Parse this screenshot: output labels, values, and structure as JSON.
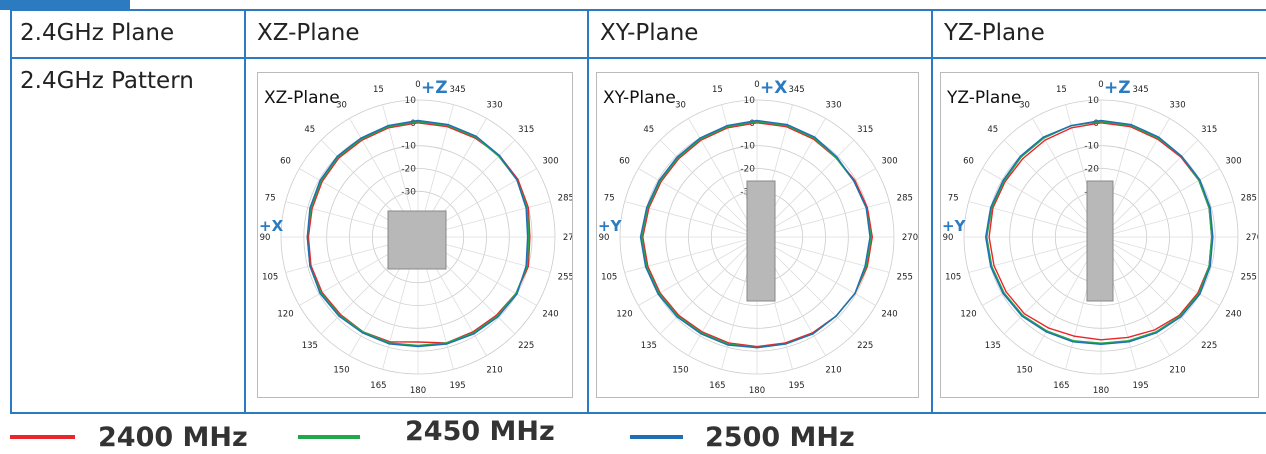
{
  "table": {
    "header": [
      "2.4GHz Plane",
      "XZ-Plane",
      "XY-Plane",
      "YZ-Plane"
    ],
    "row_label": "2.4GHz Pattern"
  },
  "chart_data": [
    {
      "type": "polar",
      "title": "XZ-Plane",
      "top_label": "+Z",
      "left_label": "+X",
      "theta": [
        0,
        15,
        30,
        45,
        60,
        75,
        90,
        105,
        120,
        135,
        150,
        165,
        180,
        195,
        210,
        225,
        240,
        255,
        270,
        285,
        300,
        315,
        330,
        345
      ],
      "rlim": [
        -50,
        10
      ],
      "rticks": [
        10,
        0,
        -10,
        -20,
        -30
      ],
      "series": [
        {
          "name": "2400 MHz",
          "color": "#e8262b",
          "values": [
            0,
            -0.5,
            -1,
            -1,
            -1.5,
            -2,
            -2,
            -1.5,
            -1.5,
            -2,
            -2,
            -2.5,
            -4,
            -2,
            -2,
            -1.5,
            -0.5,
            0,
            -1,
            0,
            0.5,
            0.5,
            0,
            0
          ]
        },
        {
          "name": "2450 MHz",
          "color": "#22a84a",
          "values": [
            0.5,
            0,
            -0.5,
            -0.5,
            -1,
            -1.5,
            -1.5,
            -1,
            -1,
            -1.5,
            -2,
            -2,
            -2.5,
            -2,
            -1.5,
            -1,
            -0.5,
            -0.5,
            -1.5,
            -0.5,
            0,
            0,
            0.5,
            0.5
          ]
        },
        {
          "name": "2500 MHz",
          "color": "#1f6fb5",
          "values": [
            1,
            0.5,
            0,
            0,
            -0.5,
            -1,
            -1.5,
            -1,
            -0.5,
            -1,
            -1.5,
            -1.5,
            -2,
            -1.5,
            -1,
            -0.5,
            0,
            -1,
            -2,
            -1,
            0,
            0.5,
            1,
            1
          ]
        }
      ]
    },
    {
      "type": "polar",
      "title": "XY-Plane",
      "top_label": "+X",
      "left_label": "+Y",
      "theta": [
        0,
        15,
        30,
        45,
        60,
        75,
        90,
        105,
        120,
        135,
        150,
        165,
        180,
        195,
        210,
        225,
        240,
        255,
        270,
        285,
        300,
        315,
        330,
        345
      ],
      "rlim": [
        -50,
        10
      ],
      "rticks": [
        10,
        0,
        -10,
        -20,
        -30
      ],
      "series": [
        {
          "name": "2400 MHz",
          "color": "#e8262b",
          "values": [
            0,
            -0.5,
            -1,
            -1.5,
            -1.5,
            -1,
            0,
            -0.5,
            -1,
            -1.5,
            -2,
            -2,
            -2,
            -2,
            -1.5,
            -1,
            -0.5,
            0,
            0.5,
            0,
            -0.5,
            -1,
            -0.5,
            0
          ]
        },
        {
          "name": "2450 MHz",
          "color": "#22a84a",
          "values": [
            0.5,
            0,
            -0.5,
            -1,
            -1,
            -0.5,
            0.5,
            0,
            -0.5,
            -1,
            -1.5,
            -1.5,
            -1.5,
            -1.5,
            -1,
            -1,
            -0.5,
            -0.5,
            0,
            -0.5,
            -1,
            -1,
            0,
            0.5
          ]
        },
        {
          "name": "2500 MHz",
          "color": "#1f6fb5",
          "values": [
            1,
            0.5,
            0,
            -0.5,
            -0.5,
            0,
            1,
            0.5,
            0,
            -0.5,
            -1,
            -1,
            -1.5,
            -1.5,
            -1,
            -1,
            -0.5,
            -1,
            -0.5,
            -0.5,
            -1,
            -0.5,
            0.5,
            1
          ]
        }
      ]
    },
    {
      "type": "polar",
      "title": "YZ-Plane",
      "top_label": "+Z",
      "left_label": "+Y",
      "theta": [
        0,
        15,
        30,
        45,
        60,
        75,
        90,
        105,
        120,
        135,
        150,
        165,
        180,
        195,
        210,
        225,
        240,
        255,
        270,
        285,
        300,
        315,
        330,
        345
      ],
      "rlim": [
        -50,
        10
      ],
      "rticks": [
        10,
        0,
        -10,
        -20,
        -30
      ],
      "series": [
        {
          "name": "2400 MHz",
          "color": "#e8262b",
          "values": [
            0,
            -0.5,
            -1,
            -1.5,
            -1.5,
            -1,
            -1,
            -1.5,
            -2,
            -2.5,
            -4,
            -5,
            -5,
            -4.5,
            -3,
            -1.5,
            -1,
            -1,
            -1.5,
            -1,
            -0.5,
            -0.5,
            -0.5,
            0
          ]
        },
        {
          "name": "2450 MHz",
          "color": "#22a84a",
          "values": [
            0.5,
            0.5,
            0,
            -0.5,
            -1,
            -0.5,
            0,
            -0.5,
            -1,
            -1.5,
            -2.5,
            -3,
            -3.5,
            -3,
            -2,
            -1,
            -0.5,
            -1,
            -1.5,
            -1,
            -0.5,
            0,
            0,
            0.5
          ]
        },
        {
          "name": "2500 MHz",
          "color": "#1f6fb5",
          "values": [
            1,
            0.5,
            0.5,
            0,
            -0.5,
            0,
            0.5,
            0,
            -0.5,
            -1,
            -2,
            -2.5,
            -3,
            -2.5,
            -1.5,
            -0.5,
            0,
            -0.5,
            -1,
            -0.5,
            0,
            0,
            0.5,
            1
          ]
        }
      ]
    }
  ]
}
